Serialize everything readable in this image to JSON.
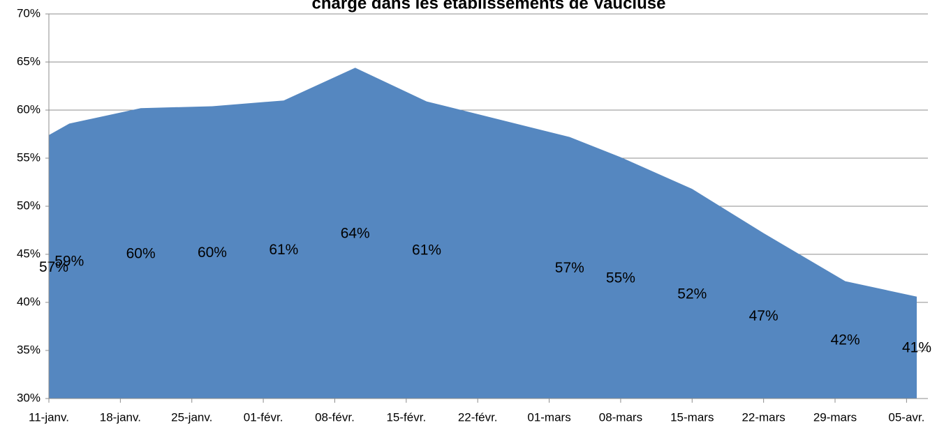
{
  "chart_data": {
    "type": "area",
    "title": "charge dans les établissements de Vaucluse",
    "color": "#5587c0",
    "x": [
      11,
      13,
      20,
      27,
      34,
      41,
      48,
      62,
      67,
      74,
      81,
      89,
      96
    ],
    "values": [
      57.4,
      58.6,
      60.2,
      60.4,
      61.0,
      64.4,
      60.9,
      57.2,
      55.1,
      51.8,
      47.2,
      42.2,
      40.6
    ],
    "value_labels": [
      "57%",
      "59%",
      "60%",
      "60%",
      "61%",
      "64%",
      "61%",
      "57%",
      "55%",
      "52%",
      "47%",
      "42%",
      "41%"
    ],
    "xlim": [
      11,
      96
    ],
    "xticks": [
      {
        "value": 11,
        "label": "11-janv."
      },
      {
        "value": 18,
        "label": "18-janv."
      },
      {
        "value": 25,
        "label": "25-janv."
      },
      {
        "value": 32,
        "label": "01-févr."
      },
      {
        "value": 39,
        "label": "08-févr."
      },
      {
        "value": 46,
        "label": "15-févr."
      },
      {
        "value": 53,
        "label": "22-févr."
      },
      {
        "value": 60,
        "label": "01-mars"
      },
      {
        "value": 67,
        "label": "08-mars"
      },
      {
        "value": 74,
        "label": "15-mars"
      },
      {
        "value": 81,
        "label": "22-mars"
      },
      {
        "value": 88,
        "label": "29-mars"
      },
      {
        "value": 95,
        "label": "05-avr."
      }
    ],
    "ylim": [
      30,
      70
    ],
    "yticks": [
      {
        "value": 30,
        "label": "30%"
      },
      {
        "value": 35,
        "label": "35%"
      },
      {
        "value": 40,
        "label": "40%"
      },
      {
        "value": 45,
        "label": "45%"
      },
      {
        "value": 50,
        "label": "50%"
      },
      {
        "value": 55,
        "label": "55%"
      },
      {
        "value": 60,
        "label": "60%"
      },
      {
        "value": 65,
        "label": "65%"
      },
      {
        "value": 70,
        "label": "70%"
      }
    ],
    "grid": true
  }
}
